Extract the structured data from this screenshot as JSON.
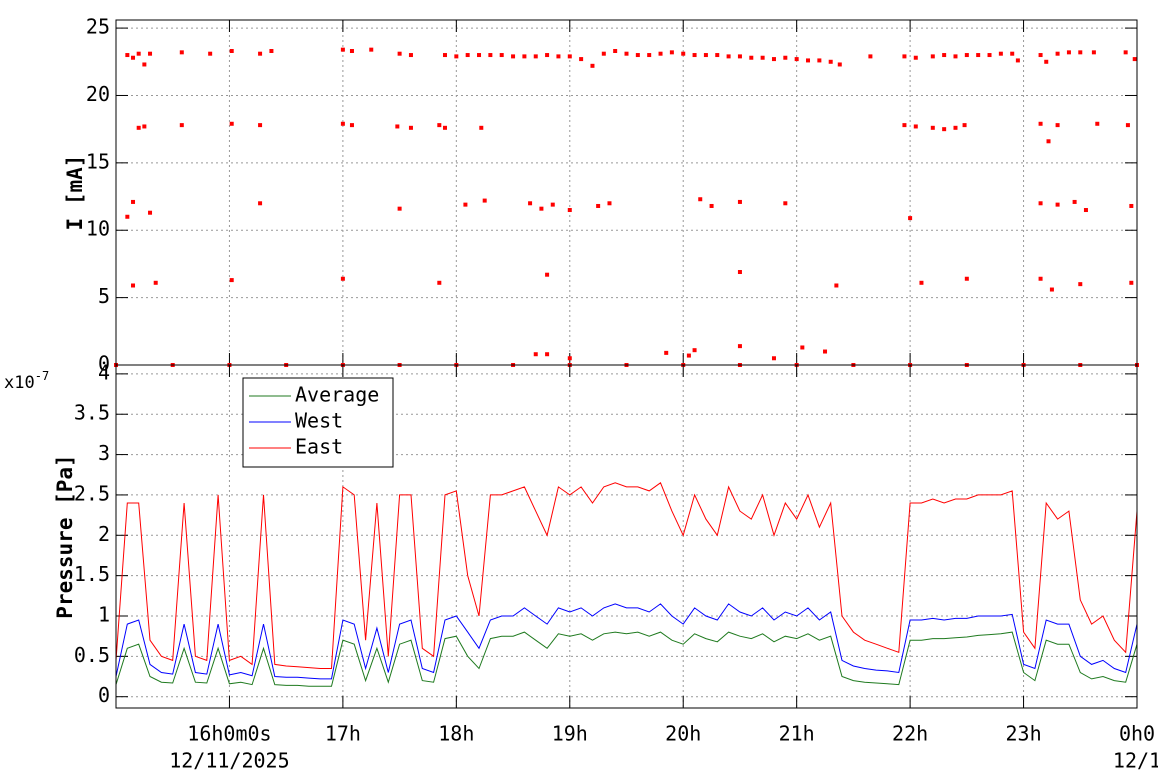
{
  "chart_data": [
    {
      "type": "scatter",
      "y_label": "I [mA]",
      "xlim": [
        15,
        24
      ],
      "ylim": [
        0,
        25.6
      ],
      "yticks": [
        0,
        5,
        10,
        15,
        20,
        25
      ],
      "grid": true,
      "x": [
        15.1,
        15.15,
        15.2,
        15.25,
        15.3,
        15.58,
        15.83,
        16.02,
        16.27,
        16.37,
        17.0,
        17.08,
        17.25,
        17.5,
        17.6,
        17.9,
        18.0,
        18.1,
        18.2,
        18.3,
        18.4,
        18.5,
        18.6,
        18.7,
        18.8,
        18.9,
        19.0,
        19.1,
        19.2,
        19.3,
        19.4,
        19.5,
        19.6,
        19.7,
        19.8,
        19.9,
        20.0,
        20.1,
        20.2,
        20.3,
        20.4,
        20.5,
        20.6,
        20.7,
        20.8,
        20.9,
        21.0,
        21.1,
        21.2,
        21.3,
        21.38,
        21.65,
        21.95,
        22.05,
        22.2,
        22.3,
        22.4,
        22.5,
        22.6,
        22.7,
        22.8,
        22.9,
        22.95,
        23.15,
        23.2,
        23.3,
        23.4,
        23.5,
        23.62,
        23.9,
        23.98,
        15.2,
        15.25,
        15.58,
        16.02,
        16.27,
        17.0,
        17.08,
        17.48,
        17.6,
        17.85,
        17.9,
        18.22,
        21.95,
        22.05,
        22.2,
        22.3,
        22.4,
        22.48,
        23.15,
        23.22,
        23.3,
        23.65,
        23.92,
        15.1,
        15.15,
        15.3,
        16.27,
        17.5,
        18.08,
        18.25,
        18.65,
        18.75,
        18.85,
        19.0,
        19.25,
        19.35,
        20.15,
        20.25,
        20.5,
        20.9,
        22.0,
        23.15,
        23.3,
        23.45,
        23.55,
        23.95,
        15.15,
        15.35,
        16.02,
        17.0,
        17.85,
        18.8,
        20.5,
        21.35,
        22.1,
        22.5,
        23.15,
        23.25,
        23.5,
        23.95,
        18.7,
        18.8,
        19.0,
        19.85,
        20.05,
        20.1,
        20.5,
        20.8,
        21.05,
        21.25,
        15.0,
        15.5,
        16.0,
        16.5,
        17.0,
        17.5,
        18.0,
        18.5,
        19.0,
        19.5,
        20.0,
        20.5,
        21.0,
        21.5,
        22.0,
        22.5,
        23.0,
        23.5,
        24.0
      ],
      "series": [
        {
          "color": "#ff0000",
          "values": [
            23.0,
            22.8,
            23.1,
            22.3,
            23.1,
            23.2,
            23.1,
            23.3,
            23.1,
            23.3,
            23.4,
            23.3,
            23.4,
            23.1,
            23.0,
            23.0,
            22.9,
            23.0,
            23.0,
            23.0,
            23.0,
            22.9,
            22.9,
            22.9,
            23.0,
            22.9,
            22.9,
            22.7,
            22.2,
            23.1,
            23.3,
            23.1,
            23.0,
            23.0,
            23.1,
            23.2,
            23.1,
            23.0,
            23.0,
            23.0,
            22.9,
            22.9,
            22.8,
            22.8,
            22.7,
            22.8,
            22.7,
            22.6,
            22.6,
            22.5,
            22.3,
            22.9,
            22.9,
            22.8,
            22.9,
            23.0,
            22.9,
            23.0,
            23.0,
            23.0,
            23.1,
            23.1,
            22.6,
            23.0,
            22.5,
            23.1,
            23.2,
            23.2,
            23.2,
            23.2,
            22.7,
            17.6,
            17.7,
            17.8,
            17.9,
            17.8,
            17.9,
            17.8,
            17.7,
            17.6,
            17.8,
            17.6,
            17.6,
            17.8,
            17.7,
            17.6,
            17.5,
            17.6,
            17.8,
            17.9,
            16.6,
            17.8,
            17.9,
            17.8,
            11.0,
            12.1,
            11.3,
            12.0,
            11.6,
            11.9,
            12.2,
            12.0,
            11.6,
            11.9,
            11.5,
            11.8,
            12.0,
            12.3,
            11.8,
            12.1,
            12.0,
            10.9,
            12.0,
            11.9,
            12.1,
            11.5,
            11.8,
            5.9,
            6.1,
            6.3,
            6.4,
            6.1,
            6.7,
            6.9,
            5.9,
            6.1,
            6.4,
            6.4,
            5.6,
            6.0,
            6.1,
            0.8,
            0.8,
            0.5,
            0.9,
            0.7,
            1.1,
            1.4,
            0.5,
            1.3,
            1.0,
            0,
            0,
            0,
            0,
            0,
            0,
            0,
            0,
            0,
            0,
            0,
            0,
            0,
            0,
            0,
            0,
            0,
            0,
            0
          ]
        }
      ]
    },
    {
      "type": "line",
      "y_label": "Pressure [Pa]",
      "y_multiplier": {
        "base": "x10",
        "exponent": "-7"
      },
      "xlim": [
        15,
        24
      ],
      "xticks": [
        {
          "value": 16,
          "label": "16h0m0s"
        },
        {
          "value": 17,
          "label": "17h"
        },
        {
          "value": 18,
          "label": "18h"
        },
        {
          "value": 19,
          "label": "19h"
        },
        {
          "value": 20,
          "label": "20h"
        },
        {
          "value": 21,
          "label": "21h"
        },
        {
          "value": 22,
          "label": "22h"
        },
        {
          "value": 23,
          "label": "23h"
        },
        {
          "value": 24,
          "label": "0h0"
        }
      ],
      "date_labels": [
        {
          "value": 16,
          "label": "12/11/2025"
        },
        {
          "value": 24,
          "label": "12/1"
        }
      ],
      "ylim": [
        -0.14,
        4.11
      ],
      "yticks": [
        0,
        0.5,
        1,
        1.5,
        2,
        2.5,
        3,
        3.5,
        4
      ],
      "grid": true,
      "legend": "top-left",
      "x": [
        15.0,
        15.1,
        15.2,
        15.3,
        15.4,
        15.5,
        15.6,
        15.7,
        15.8,
        15.9,
        16.0,
        16.1,
        16.2,
        16.3,
        16.4,
        16.5,
        16.6,
        16.7,
        16.8,
        16.9,
        17.0,
        17.1,
        17.2,
        17.3,
        17.4,
        17.5,
        17.6,
        17.7,
        17.8,
        17.9,
        18.0,
        18.1,
        18.2,
        18.3,
        18.4,
        18.5,
        18.6,
        18.7,
        18.8,
        18.9,
        19.0,
        19.1,
        19.2,
        19.3,
        19.4,
        19.5,
        19.6,
        19.7,
        19.8,
        19.9,
        20.0,
        20.1,
        20.2,
        20.3,
        20.4,
        20.5,
        20.6,
        20.7,
        20.8,
        20.9,
        21.0,
        21.1,
        21.2,
        21.3,
        21.4,
        21.5,
        21.6,
        21.7,
        21.8,
        21.9,
        22.0,
        22.1,
        22.2,
        22.3,
        22.4,
        22.5,
        22.6,
        22.7,
        22.8,
        22.9,
        23.0,
        23.1,
        23.2,
        23.3,
        23.4,
        23.5,
        23.6,
        23.7,
        23.8,
        23.9,
        24.0
      ],
      "series": [
        {
          "name": "Average",
          "color": "#1f7a1f",
          "values": [
            0.15,
            0.6,
            0.65,
            0.25,
            0.18,
            0.17,
            0.6,
            0.18,
            0.17,
            0.6,
            0.16,
            0.18,
            0.15,
            0.6,
            0.15,
            0.14,
            0.14,
            0.13,
            0.13,
            0.13,
            0.7,
            0.65,
            0.2,
            0.6,
            0.18,
            0.65,
            0.7,
            0.2,
            0.18,
            0.72,
            0.75,
            0.5,
            0.35,
            0.72,
            0.75,
            0.75,
            0.8,
            0.7,
            0.6,
            0.78,
            0.75,
            0.78,
            0.7,
            0.78,
            0.8,
            0.78,
            0.8,
            0.75,
            0.8,
            0.7,
            0.65,
            0.78,
            0.72,
            0.68,
            0.8,
            0.75,
            0.72,
            0.78,
            0.68,
            0.75,
            0.72,
            0.78,
            0.7,
            0.75,
            0.25,
            0.2,
            0.18,
            0.17,
            0.16,
            0.15,
            0.7,
            0.7,
            0.72,
            0.72,
            0.73,
            0.74,
            0.76,
            0.77,
            0.78,
            0.8,
            0.3,
            0.2,
            0.7,
            0.65,
            0.65,
            0.3,
            0.22,
            0.25,
            0.2,
            0.18,
            0.65
          ]
        },
        {
          "name": "West",
          "color": "#0000ff",
          "values": [
            0.25,
            0.9,
            0.95,
            0.4,
            0.3,
            0.28,
            0.9,
            0.3,
            0.28,
            0.9,
            0.27,
            0.3,
            0.26,
            0.9,
            0.25,
            0.24,
            0.24,
            0.23,
            0.22,
            0.22,
            0.95,
            0.9,
            0.35,
            0.85,
            0.3,
            0.9,
            0.95,
            0.35,
            0.3,
            0.95,
            1.0,
            0.8,
            0.6,
            0.95,
            1.0,
            1.0,
            1.1,
            1.0,
            0.9,
            1.1,
            1.05,
            1.1,
            1.0,
            1.1,
            1.15,
            1.1,
            1.1,
            1.05,
            1.15,
            1.0,
            0.9,
            1.1,
            1.0,
            0.95,
            1.15,
            1.05,
            1.0,
            1.1,
            0.95,
            1.05,
            1.0,
            1.1,
            0.95,
            1.05,
            0.45,
            0.38,
            0.35,
            0.33,
            0.32,
            0.3,
            0.95,
            0.95,
            0.97,
            0.95,
            0.97,
            0.97,
            1.0,
            1.0,
            1.0,
            1.02,
            0.4,
            0.35,
            0.95,
            0.9,
            0.9,
            0.5,
            0.4,
            0.45,
            0.35,
            0.3,
            0.9
          ]
        },
        {
          "name": "East",
          "color": "#ff0000",
          "values": [
            0.45,
            2.4,
            2.4,
            0.7,
            0.5,
            0.45,
            2.4,
            0.5,
            0.45,
            2.5,
            0.45,
            0.5,
            0.4,
            2.5,
            0.4,
            0.38,
            0.37,
            0.36,
            0.35,
            0.35,
            2.6,
            2.5,
            0.7,
            2.4,
            0.5,
            2.5,
            2.5,
            0.6,
            0.5,
            2.5,
            2.55,
            1.5,
            1.0,
            2.5,
            2.5,
            2.55,
            2.6,
            2.3,
            2.0,
            2.6,
            2.5,
            2.6,
            2.4,
            2.6,
            2.65,
            2.6,
            2.6,
            2.55,
            2.65,
            2.3,
            2.0,
            2.5,
            2.2,
            2.0,
            2.6,
            2.3,
            2.2,
            2.5,
            2.0,
            2.4,
            2.2,
            2.5,
            2.1,
            2.4,
            1.0,
            0.8,
            0.7,
            0.65,
            0.6,
            0.55,
            2.4,
            2.4,
            2.45,
            2.4,
            2.45,
            2.45,
            2.5,
            2.5,
            2.5,
            2.55,
            0.8,
            0.6,
            2.4,
            2.2,
            2.3,
            1.2,
            0.9,
            1.0,
            0.7,
            0.55,
            2.3
          ]
        }
      ]
    }
  ]
}
